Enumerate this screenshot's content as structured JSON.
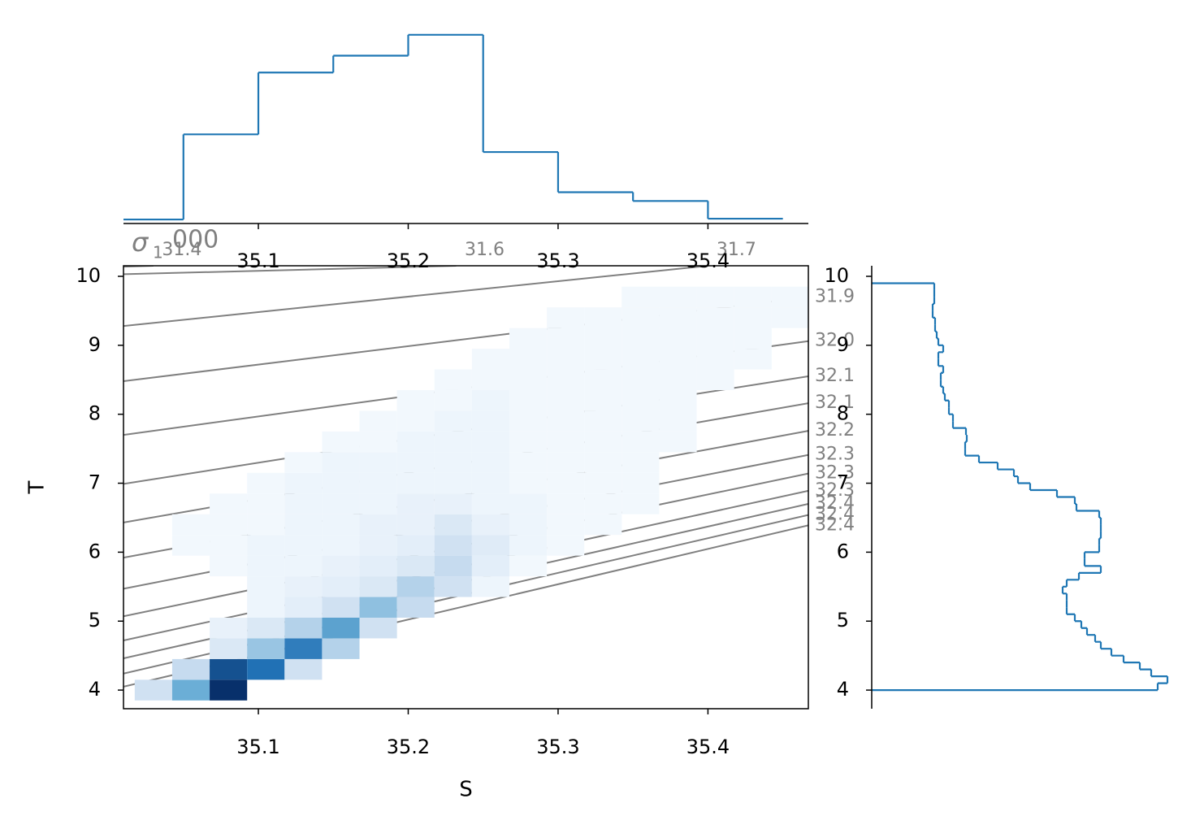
{
  "chart_data": [
    {
      "type": "hexbin",
      "xlabel": "S",
      "ylabel": "T",
      "xlim": [
        35.01,
        35.467
      ],
      "ylim": [
        3.73,
        10.153
      ],
      "xticks": [
        35.1,
        35.2,
        35.3,
        35.4
      ],
      "yticks": [
        4,
        5,
        6,
        7,
        8,
        9,
        10
      ],
      "colormap": [
        "#f7fbff",
        "#c6dbef",
        "#6baed6",
        "#2171b5",
        "#08306b"
      ],
      "contour_color": "#808080",
      "density_title": {
        "symbol": "σ",
        "subscript": "1",
        "suffix": "000"
      },
      "contours": [
        {
          "label": "31.4",
          "S": [
            35.01,
            35.03
          ],
          "T": [
            10.14,
            10.153
          ]
        },
        {
          "label": "31.6",
          "S": [
            35.01,
            35.232
          ],
          "T": [
            10.03,
            10.153
          ]
        },
        {
          "label": "31.7",
          "S": [
            35.01,
            35.4
          ],
          "T": [
            9.28,
            10.153
          ]
        },
        {
          "label": "31.9",
          "S": [
            35.01,
            35.467
          ],
          "T": [
            8.48,
            9.7
          ]
        },
        {
          "label": "32.0",
          "S": [
            35.01,
            35.467
          ],
          "T": [
            7.7,
            9.06
          ]
        },
        {
          "label": "32.1",
          "S": [
            35.01,
            35.467
          ],
          "T": [
            6.99,
            8.55
          ]
        },
        {
          "label": "32.1",
          "S": [
            35.01,
            35.467
          ],
          "T": [
            6.43,
            8.16
          ]
        },
        {
          "label": "32.2",
          "S": [
            35.01,
            35.467
          ],
          "T": [
            5.92,
            7.76
          ]
        },
        {
          "label": "32.3",
          "S": [
            35.01,
            35.467
          ],
          "T": [
            5.47,
            7.41
          ]
        },
        {
          "label": "32.3",
          "S": [
            35.01,
            35.467
          ],
          "T": [
            5.07,
            7.14
          ]
        },
        {
          "label": "32.3",
          "S": [
            35.01,
            35.467
          ],
          "T": [
            4.72,
            6.89
          ]
        },
        {
          "label": "32.4",
          "S": [
            35.01,
            35.467
          ],
          "T": [
            4.46,
            6.7
          ]
        },
        {
          "label": "32.4",
          "S": [
            35.01,
            35.467
          ],
          "T": [
            4.24,
            6.54
          ]
        },
        {
          "label": "32.4",
          "S": [
            35.01,
            35.467
          ],
          "T": [
            4.05,
            6.39
          ]
        }
      ],
      "hexbin": [
        {
          "T": 4.0,
          "S": [
            35.03,
            35.055,
            35.08
          ],
          "counts": [
            8,
            20,
            40
          ]
        },
        {
          "T": 4.3,
          "S": [
            35.055,
            35.08,
            35.105,
            35.13
          ],
          "counts": [
            10,
            35,
            30,
            8
          ]
        },
        {
          "T": 4.6,
          "S": [
            35.08,
            35.105,
            35.13,
            35.155
          ],
          "counts": [
            6,
            15,
            28,
            12
          ]
        },
        {
          "T": 4.9,
          "S": [
            35.08,
            35.105,
            35.13,
            35.155,
            35.18
          ],
          "counts": [
            3,
            6,
            12,
            22,
            8
          ]
        },
        {
          "T": 5.2,
          "S": [
            35.105,
            35.13,
            35.155,
            35.18,
            35.205
          ],
          "counts": [
            2,
            4,
            8,
            16,
            10
          ]
        },
        {
          "T": 5.5,
          "S": [
            35.105,
            35.13,
            35.155,
            35.18,
            35.205,
            35.23,
            35.255
          ],
          "counts": [
            2,
            3,
            4,
            6,
            12,
            8,
            2
          ]
        },
        {
          "T": 5.8,
          "S": [
            35.08,
            35.105,
            35.13,
            35.155,
            35.18,
            35.205,
            35.23,
            35.255,
            35.28
          ],
          "counts": [
            1,
            2,
            2,
            3,
            4,
            6,
            10,
            4,
            1
          ]
        },
        {
          "T": 6.1,
          "S": [
            35.055,
            35.08,
            35.105,
            35.13,
            35.155,
            35.18,
            35.205,
            35.23,
            35.255,
            35.28,
            35.305
          ],
          "counts": [
            1,
            1,
            2,
            2,
            2,
            3,
            4,
            8,
            5,
            2,
            1
          ]
        },
        {
          "T": 6.4,
          "S": [
            35.055,
            35.08,
            35.105,
            35.13,
            35.155,
            35.18,
            35.205,
            35.23,
            35.255,
            35.28,
            35.305,
            35.33
          ],
          "counts": [
            1,
            1,
            1,
            2,
            2,
            3,
            3,
            6,
            3,
            2,
            1,
            1
          ]
        },
        {
          "T": 6.7,
          "S": [
            35.08,
            35.105,
            35.13,
            35.155,
            35.18,
            35.205,
            35.23,
            35.255,
            35.28,
            35.305,
            35.33,
            35.355
          ],
          "counts": [
            1,
            1,
            2,
            2,
            2,
            3,
            3,
            2,
            2,
            1,
            1,
            1
          ]
        },
        {
          "T": 7.0,
          "S": [
            35.105,
            35.13,
            35.155,
            35.18,
            35.205,
            35.23,
            35.255,
            35.28,
            35.305,
            35.33,
            35.355
          ],
          "counts": [
            1,
            2,
            2,
            2,
            2,
            2,
            2,
            1,
            1,
            1,
            1
          ]
        },
        {
          "T": 7.3,
          "S": [
            35.13,
            35.155,
            35.18,
            35.205,
            35.23,
            35.255,
            35.28,
            35.305,
            35.33,
            35.355
          ],
          "counts": [
            1,
            2,
            2,
            2,
            2,
            2,
            1,
            1,
            1,
            1
          ]
        },
        {
          "T": 7.6,
          "S": [
            35.155,
            35.18,
            35.205,
            35.23,
            35.255,
            35.28,
            35.305,
            35.33,
            35.355,
            35.38
          ],
          "counts": [
            1,
            1,
            2,
            2,
            2,
            1,
            1,
            1,
            1,
            1
          ]
        },
        {
          "T": 7.9,
          "S": [
            35.18,
            35.205,
            35.23,
            35.255,
            35.28,
            35.305,
            35.33,
            35.355,
            35.38
          ],
          "counts": [
            1,
            1,
            2,
            2,
            1,
            1,
            1,
            1,
            1
          ]
        },
        {
          "T": 8.2,
          "S": [
            35.205,
            35.23,
            35.255,
            35.28,
            35.305,
            35.33,
            35.355,
            35.38
          ],
          "counts": [
            1,
            1,
            2,
            1,
            1,
            1,
            1,
            1
          ]
        },
        {
          "T": 8.5,
          "S": [
            35.23,
            35.255,
            35.28,
            35.305,
            35.33,
            35.355,
            35.38,
            35.405
          ],
          "counts": [
            1,
            1,
            1,
            1,
            1,
            1,
            1,
            1
          ]
        },
        {
          "T": 8.8,
          "S": [
            35.255,
            35.28,
            35.305,
            35.33,
            35.355,
            35.38,
            35.405,
            35.43
          ],
          "counts": [
            1,
            1,
            1,
            1,
            1,
            1,
            1,
            1
          ]
        },
        {
          "T": 9.1,
          "S": [
            35.28,
            35.305,
            35.33,
            35.355,
            35.38,
            35.405,
            35.43
          ],
          "counts": [
            1,
            1,
            1,
            1,
            1,
            1,
            1
          ]
        },
        {
          "T": 9.4,
          "S": [
            35.305,
            35.33,
            35.355,
            35.38,
            35.405,
            35.43,
            35.455
          ],
          "counts": [
            1,
            1,
            1,
            1,
            1,
            1,
            1
          ]
        },
        {
          "T": 9.7,
          "S": [
            35.355,
            35.38,
            35.405,
            35.43,
            35.455
          ],
          "counts": [
            1,
            1,
            1,
            1,
            1
          ]
        }
      ]
    },
    {
      "type": "histogram",
      "orientation": "vertical",
      "color": "#1f77b4",
      "bins": [
        35.0,
        35.05,
        35.1,
        35.15,
        35.2,
        35.25,
        35.3,
        35.35,
        35.4,
        35.45
      ],
      "counts": [
        5,
        111,
        188,
        209,
        235,
        89,
        39,
        28,
        6
      ],
      "xlim": [
        35.01,
        35.467
      ],
      "ylim": [
        0,
        250
      ],
      "xticks": [
        35.1,
        35.2,
        35.3,
        35.4
      ]
    },
    {
      "type": "histogram",
      "orientation": "horizontal",
      "color": "#1f77b4",
      "bins": [
        4.0,
        4.1,
        4.2,
        4.3,
        4.4,
        4.5,
        4.6,
        4.7,
        4.8,
        4.9,
        5.0,
        5.1,
        5.2,
        5.3,
        5.4,
        5.5,
        5.6,
        5.7,
        5.8,
        5.9,
        6.0,
        6.1,
        6.2,
        6.3,
        6.4,
        6.5,
        6.6,
        6.7,
        6.8,
        6.9,
        7.0,
        7.1,
        7.2,
        7.3,
        7.4,
        7.5,
        7.6,
        7.7,
        7.8,
        7.9,
        8.0,
        8.1,
        8.2,
        8.3,
        8.4,
        8.5,
        8.6,
        8.7,
        8.8,
        8.9,
        9.0,
        9.1,
        9.2,
        9.3,
        9.4,
        9.5,
        9.6,
        9.7,
        9.8,
        9.9
      ],
      "counts": [
        352,
        364,
        344,
        330,
        310,
        295,
        282,
        275,
        265,
        258,
        250,
        240,
        240,
        240,
        235,
        240,
        255,
        282,
        262,
        262,
        280,
        280,
        282,
        282,
        282,
        280,
        252,
        250,
        228,
        195,
        180,
        175,
        155,
        132,
        115,
        115,
        117,
        116,
        100,
        100,
        95,
        95,
        90,
        88,
        85,
        85,
        88,
        82,
        82,
        88,
        82,
        80,
        78,
        78,
        75,
        75,
        77,
        77,
        77
      ],
      "xlim": [
        0,
        370
      ],
      "ylim": [
        3.73,
        10.153
      ],
      "yticks": [
        4,
        5,
        6,
        7,
        8,
        9,
        10
      ]
    }
  ]
}
